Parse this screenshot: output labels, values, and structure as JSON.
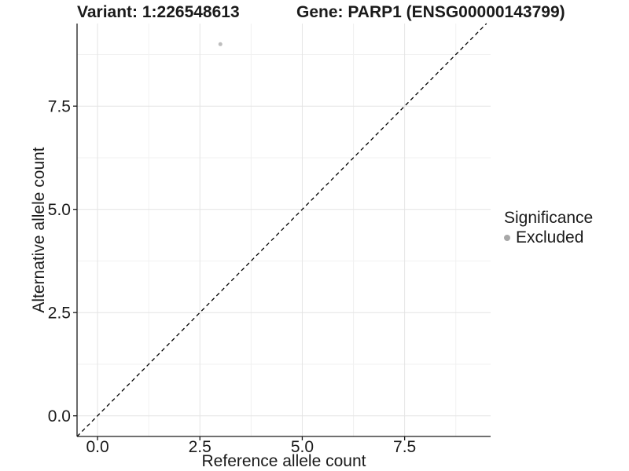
{
  "chart_data": {
    "type": "scatter",
    "title_left": "Variant: 1:226548613",
    "title_right": "Gene: PARP1 (ENSG00000143799)",
    "xlabel": "Reference allele count",
    "ylabel": "Alternative allele count",
    "xlim": [
      -0.5,
      9.6
    ],
    "ylim": [
      -0.5,
      9.5
    ],
    "xticks": [
      0.0,
      2.5,
      5.0,
      7.5
    ],
    "yticks": [
      0.0,
      2.5,
      5.0,
      7.5
    ],
    "xminor": [
      1.25,
      3.75,
      6.25,
      8.75
    ],
    "yminor": [
      1.25,
      3.75,
      6.25,
      8.75
    ],
    "grid": "major+minor",
    "points": [
      {
        "x": 3,
        "y": 9,
        "series": "Excluded"
      }
    ],
    "identity_line": {
      "style": "dashed",
      "color": "#000000",
      "from": -0.5,
      "to": 9.5
    },
    "legend": {
      "position": "right",
      "title": "Significance",
      "items": [
        {
          "label": "Excluded",
          "color": "#a8a8a8"
        }
      ]
    },
    "colors": {
      "point": "#bdbdbd",
      "grid_major": "#e4e4e4",
      "grid_minor": "#f1f1f1",
      "axis": "#1a1a1a",
      "text": "#1a1a1a"
    }
  }
}
